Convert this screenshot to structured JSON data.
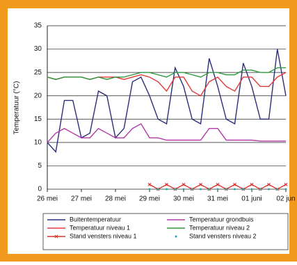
{
  "chart_data": {
    "type": "line",
    "ylabel": "Temperatuur (°C)",
    "xlim": [
      0,
      7
    ],
    "ylim": [
      0,
      35
    ],
    "xticks": [
      {
        "value": 0,
        "label": "26 mei"
      },
      {
        "value": 1,
        "label": "27 mei"
      },
      {
        "value": 2,
        "label": "28 mei"
      },
      {
        "value": 3,
        "label": "29 mei"
      },
      {
        "value": 4,
        "label": "30 mei"
      },
      {
        "value": 5,
        "label": "31 mei"
      },
      {
        "value": 6,
        "label": "01 juni"
      },
      {
        "value": 7,
        "label": "02 jun"
      }
    ],
    "yticks": [
      0,
      5,
      10,
      15,
      20,
      25,
      30,
      35
    ],
    "grid": true,
    "x": [
      0,
      0.25,
      0.5,
      0.75,
      1,
      1.25,
      1.5,
      1.75,
      2,
      2.25,
      2.5,
      2.75,
      3,
      3.25,
      3.5,
      3.75,
      4,
      4.25,
      4.5,
      4.75,
      5,
      5.25,
      5.5,
      5.75,
      6,
      6.25,
      6.5,
      6.75,
      7
    ],
    "series": [
      {
        "name": "Buitentemperatuur",
        "color": "#2b2f7a",
        "marker": "none",
        "values": [
          10,
          8,
          19,
          19,
          11,
          12,
          21,
          20,
          11,
          13,
          23,
          24,
          20,
          15,
          14,
          26,
          22,
          15,
          14,
          28,
          22,
          15,
          14,
          27,
          22,
          15,
          15,
          30,
          20
        ]
      },
      {
        "name": "Temperatuur grondbuis",
        "color": "#b23aa8",
        "marker": "none",
        "values": [
          10,
          12,
          13,
          12,
          11,
          11,
          13,
          12,
          11,
          11,
          13,
          14,
          11,
          11,
          10.5,
          10.5,
          10.5,
          10.5,
          10.5,
          13,
          13,
          10.5,
          10.5,
          10.5,
          10.5,
          10.3,
          10.3,
          10.3,
          10.3
        ]
      },
      {
        "name": "Temperatuur niveau 1",
        "color": "#e03a3a",
        "marker": "none",
        "values": [
          24,
          23.5,
          24,
          24,
          24,
          23.5,
          24,
          24,
          24,
          23.5,
          24,
          24.5,
          24,
          23,
          21,
          24,
          24,
          21,
          20,
          23,
          24,
          22,
          21,
          24,
          24,
          22,
          22,
          24,
          25
        ]
      },
      {
        "name": "Temperatuur niveau 2",
        "color": "#2e9a3e",
        "marker": "none",
        "values": [
          24,
          23.5,
          24,
          24,
          24,
          23.5,
          24,
          23.5,
          24,
          24,
          24.5,
          25,
          25,
          24.5,
          24,
          25,
          25,
          24.5,
          24,
          25,
          25,
          24.5,
          24.5,
          25.5,
          25.5,
          25,
          25,
          26,
          26
        ]
      },
      {
        "name": "Stand vensters niveau 1",
        "color": "#d8342c",
        "marker": "x",
        "values": [
          null,
          null,
          null,
          null,
          null,
          null,
          null,
          null,
          null,
          null,
          null,
          null,
          1,
          0,
          1,
          0,
          1,
          0,
          1,
          0,
          1,
          0,
          1,
          0,
          1,
          0,
          1,
          0,
          1
        ]
      },
      {
        "name": "Stand vensters niveau 2",
        "color": "#2aa6a6",
        "marker": "dot",
        "line": false,
        "values": [
          null,
          null,
          null,
          null,
          null,
          null,
          null,
          null,
          null,
          null,
          null,
          null,
          0,
          0,
          0,
          0,
          0,
          0,
          0,
          0,
          0,
          0,
          0,
          0,
          0,
          0,
          0,
          0,
          0
        ]
      }
    ]
  }
}
